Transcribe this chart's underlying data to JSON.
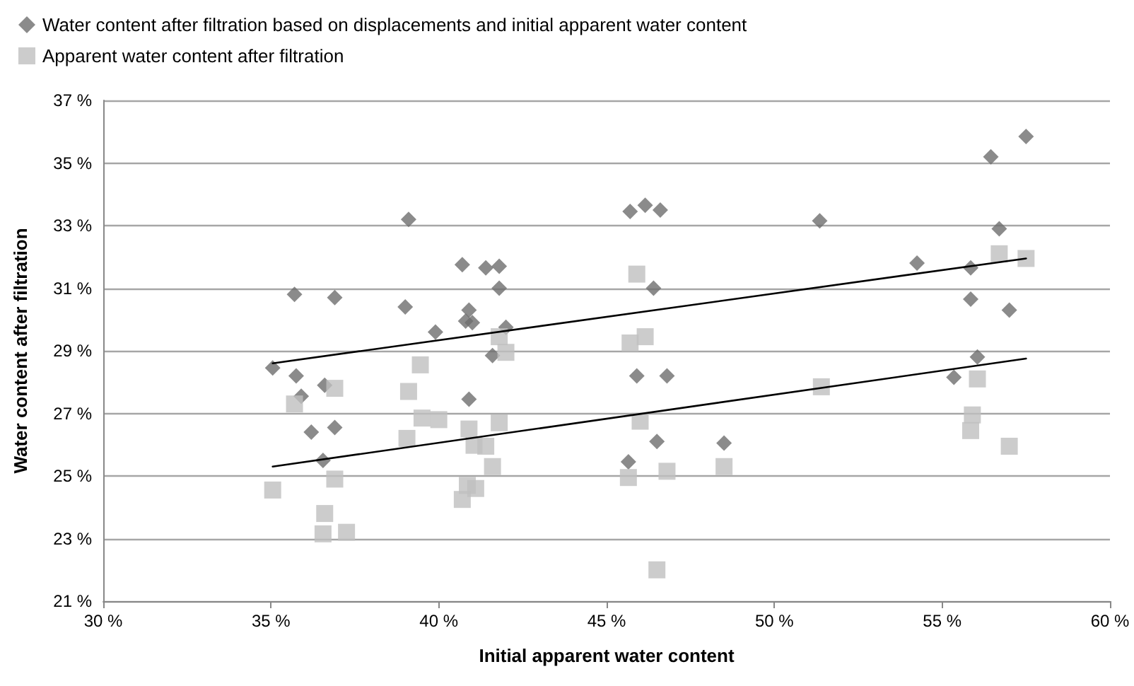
{
  "chart_data": {
    "type": "scatter",
    "xlabel": "Initial apparent water content",
    "ylabel": "Water content after filtration",
    "xlim": [
      30,
      60
    ],
    "xticks": [
      {
        "value": 30,
        "label": "30 %"
      },
      {
        "value": 35,
        "label": "35 %"
      },
      {
        "value": 40,
        "label": "40 %"
      },
      {
        "value": 45,
        "label": "45 %"
      },
      {
        "value": 50,
        "label": "50 %"
      },
      {
        "value": 55,
        "label": "55 %"
      },
      {
        "value": 60,
        "label": "60 %"
      }
    ],
    "ylim": [
      21,
      37
    ],
    "yticks": [
      {
        "value": 21,
        "label": "21 %"
      },
      {
        "value": 23,
        "label": "23 %"
      },
      {
        "value": 25,
        "label": "25 %"
      },
      {
        "value": 27,
        "label": "27 %"
      },
      {
        "value": 29,
        "label": "29 %"
      },
      {
        "value": 31,
        "label": "31 %"
      },
      {
        "value": 33,
        "label": "33 %"
      },
      {
        "value": 35,
        "label": "35 %"
      },
      {
        "value": 37,
        "label": "37 %"
      }
    ],
    "grid": "y",
    "legend": "top left",
    "series": [
      {
        "name": "Water content after filtration based on displacements and initial apparent water content",
        "color": "#6e6e6e",
        "marker": "diamond",
        "x": [
          39.1,
          35.7,
          36.9,
          39.0,
          40.7,
          41.4,
          41.8,
          41.8,
          40.9,
          40.8,
          41.0,
          39.9,
          42.0,
          41.6,
          35.05,
          35.75,
          35.9,
          36.6,
          40.9,
          36.2,
          36.9,
          36.55,
          45.7,
          46.15,
          46.6,
          51.35,
          46.4,
          45.9,
          46.8,
          46.5,
          48.5,
          45.65,
          57.5,
          56.45,
          56.7,
          54.25,
          55.85,
          55.85,
          57.0,
          56.05,
          55.35
        ],
        "values": [
          33.2,
          30.8,
          30.7,
          30.4,
          31.75,
          31.65,
          31.7,
          31.0,
          30.3,
          29.95,
          29.9,
          29.6,
          29.75,
          28.85,
          28.45,
          28.2,
          27.55,
          27.9,
          27.45,
          26.4,
          26.55,
          25.5,
          33.45,
          33.65,
          33.5,
          33.15,
          31.0,
          28.2,
          28.2,
          26.1,
          26.05,
          25.45,
          35.85,
          35.2,
          32.9,
          31.8,
          31.65,
          30.65,
          30.3,
          28.8,
          28.15
        ]
      },
      {
        "name": "Apparent water content after filtration",
        "color": "#bfbfbf",
        "marker": "square",
        "x": [
          41.8,
          42.0,
          39.45,
          36.9,
          39.1,
          35.7,
          39.5,
          40.0,
          40.9,
          41.8,
          39.05,
          41.05,
          41.4,
          41.6,
          35.05,
          36.9,
          40.85,
          41.1,
          40.7,
          36.6,
          36.55,
          37.25,
          45.9,
          46.15,
          45.7,
          51.4,
          46.0,
          45.65,
          46.8,
          48.5,
          46.5,
          56.7,
          57.5,
          56.05,
          55.9,
          55.85,
          57.0
        ],
        "values": [
          29.45,
          28.95,
          28.55,
          27.8,
          27.7,
          27.3,
          26.85,
          26.8,
          26.5,
          26.7,
          26.2,
          25.98,
          25.95,
          25.3,
          24.55,
          24.9,
          24.7,
          24.6,
          24.25,
          23.8,
          23.15,
          23.2,
          31.45,
          29.45,
          29.25,
          27.85,
          26.75,
          24.95,
          25.15,
          25.3,
          22.0,
          32.1,
          31.95,
          28.1,
          26.95,
          26.45,
          25.95
        ]
      },
      {
        "type": "line",
        "color": "#000000",
        "marker": "none",
        "line_style": "solid",
        "x": [
          35.05,
          57.5
        ],
        "values": [
          28.6,
          31.95
        ]
      },
      {
        "type": "line",
        "color": "#000000",
        "marker": "none",
        "line_style": "solid",
        "x": [
          35.05,
          57.5
        ],
        "values": [
          25.3,
          28.75
        ]
      }
    ]
  }
}
